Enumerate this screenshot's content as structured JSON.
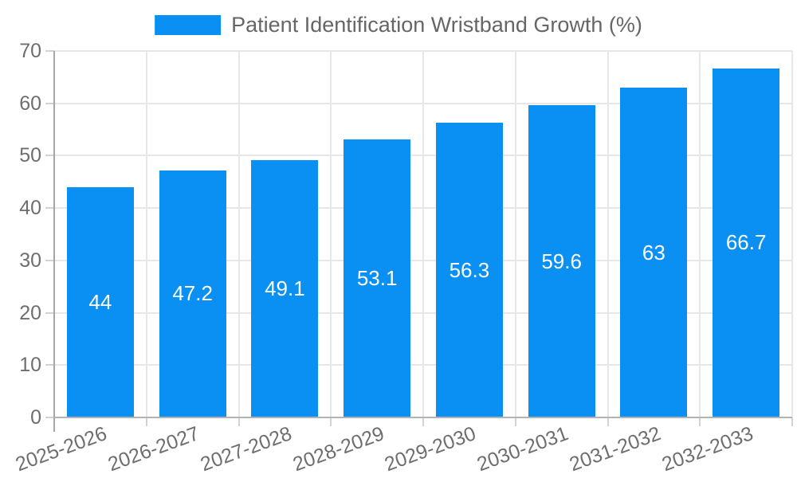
{
  "chart_data": {
    "type": "bar",
    "title": "Patient Identification Wristband Growth (%)",
    "categories": [
      "2025-2026",
      "2026-2027",
      "2027-2028",
      "2028-2029",
      "2029-2030",
      "2030-2031",
      "2031-2032",
      "2032-2033"
    ],
    "values": [
      44,
      47.2,
      49.1,
      53.1,
      56.3,
      59.6,
      63,
      66.7
    ],
    "value_labels": [
      "44",
      "47.2",
      "49.1",
      "53.1",
      "56.3",
      "59.6",
      "63",
      "66.7"
    ],
    "xlabel": "",
    "ylabel": "",
    "ylim": [
      0,
      70
    ],
    "yticks": [
      "0",
      "10",
      "20",
      "30",
      "40",
      "50",
      "60",
      "70"
    ],
    "grid": true,
    "legend_position": "top",
    "colors": {
      "bar": "#0a8ff2",
      "gridline": "#e7e7e7",
      "axis_border": "#a6a6a6",
      "x_axis_border": "#b3b3b3",
      "tick_mark": "#d2d2d2",
      "tick_text": "#6e6e6e",
      "legend_text": "#666666",
      "value_text": "#ffffff",
      "background": "#ffffff"
    }
  }
}
